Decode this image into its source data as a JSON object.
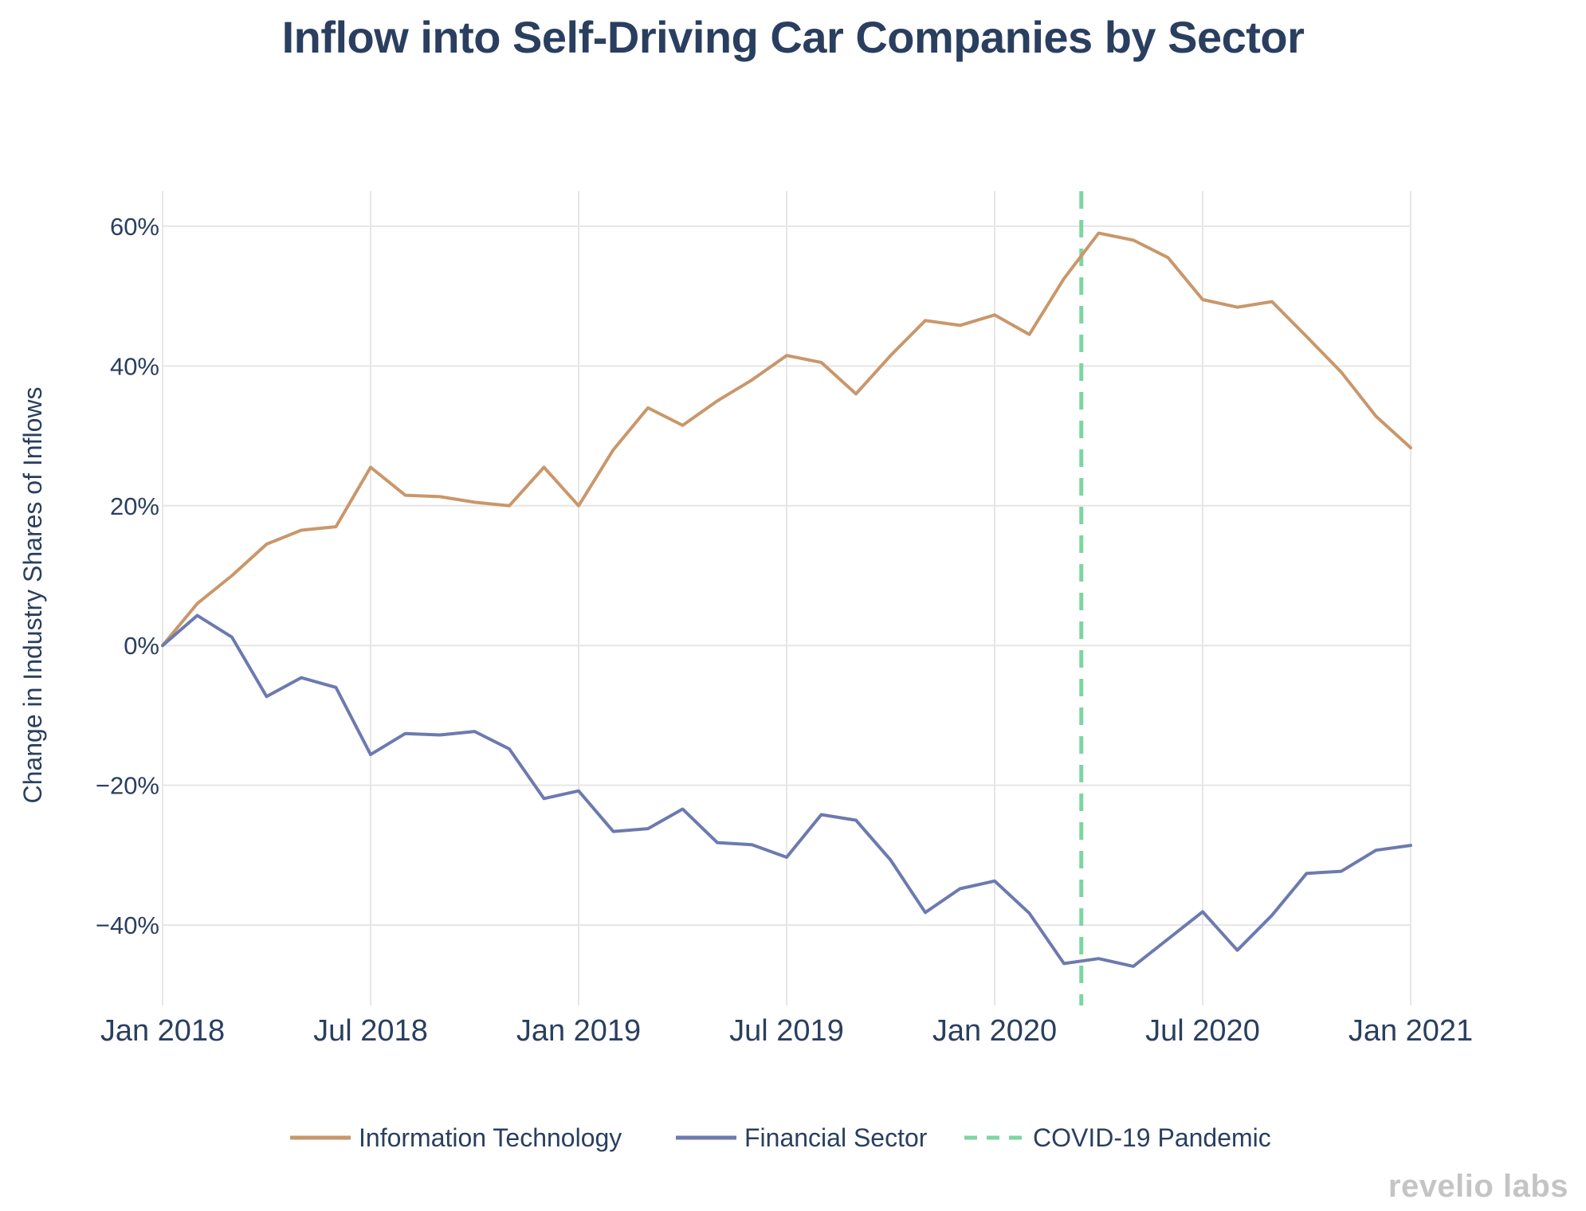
{
  "chart_data": {
    "type": "line",
    "title": "Inflow into Self-Driving Car Companies by Sector",
    "xlabel": "",
    "ylabel": "Change in Industry Shares of Inflows",
    "x": [
      "2018-01",
      "2018-02",
      "2018-03",
      "2018-04",
      "2018-05",
      "2018-06",
      "2018-07",
      "2018-08",
      "2018-09",
      "2018-10",
      "2018-11",
      "2018-12",
      "2019-01",
      "2019-02",
      "2019-03",
      "2019-04",
      "2019-05",
      "2019-06",
      "2019-07",
      "2019-08",
      "2019-09",
      "2019-10",
      "2019-11",
      "2019-12",
      "2020-01",
      "2020-02",
      "2020-03",
      "2020-04",
      "2020-05",
      "2020-06",
      "2020-07",
      "2020-08",
      "2020-09",
      "2020-10",
      "2020-11",
      "2020-12",
      "2021-01"
    ],
    "x_ticks": [
      {
        "label": "Jan 2018",
        "index": 0
      },
      {
        "label": "Jul 2018",
        "index": 6
      },
      {
        "label": "Jan 2019",
        "index": 12
      },
      {
        "label": "Jul 2019",
        "index": 18
      },
      {
        "label": "Jan 2020",
        "index": 24
      },
      {
        "label": "Jul 2020",
        "index": 30
      },
      {
        "label": "Jan 2021",
        "index": 36
      }
    ],
    "y_ticks": [
      {
        "label": "60%",
        "value": 60
      },
      {
        "label": "40%",
        "value": 40
      },
      {
        "label": "20%",
        "value": 20
      },
      {
        "label": "0%",
        "value": 0
      },
      {
        "label": "−20%",
        "value": -20
      },
      {
        "label": "−40%",
        "value": -40
      }
    ],
    "ylim": [
      -51.5,
      65
    ],
    "series": [
      {
        "name": "Information Technology",
        "color": "#c9976b",
        "values": [
          0,
          6,
          10,
          14.5,
          16.5,
          17,
          25.5,
          21.5,
          21.3,
          20.5,
          20,
          25.5,
          20,
          28,
          34,
          31.5,
          35,
          38,
          41.5,
          40.5,
          36,
          41.5,
          46.5,
          45.8,
          47.3,
          44.5,
          52.5,
          59,
          58,
          55.5,
          49.5,
          48.4,
          49.2,
          44.2,
          39.1,
          32.8,
          28.3
        ]
      },
      {
        "name": "Financial Sector",
        "color": "#6c7aaf",
        "values": [
          0,
          4.3,
          1.2,
          -7.3,
          -4.6,
          -6,
          -15.6,
          -12.6,
          -12.8,
          -12.3,
          -14.8,
          -21.9,
          -20.8,
          -26.6,
          -26.2,
          -23.4,
          -28.2,
          -28.5,
          -30.3,
          -24.2,
          -25,
          -30.7,
          -38.2,
          -34.8,
          -33.7,
          -38.3,
          -45.5,
          -44.8,
          -45.9,
          -42,
          -38.1,
          -43.6,
          -38.6,
          -32.6,
          -32.3,
          -29.3,
          -28.6
        ]
      }
    ],
    "reference_lines": [
      {
        "name": "COVID-19 Pandemic",
        "x_index": 26.5,
        "color": "#7dd6a0",
        "style": "dashed"
      }
    ],
    "legend": {
      "position": "bottom-center"
    },
    "grid": true
  },
  "watermark": {
    "text": "revelio labs"
  }
}
